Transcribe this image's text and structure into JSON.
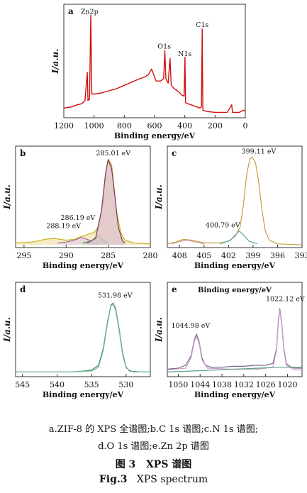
{
  "chart_data": [
    {
      "type": "line",
      "panel": "a",
      "xlabel": "Binding energy/eV",
      "ylabel": "I/a.u.",
      "x_reversed": true,
      "xlim": [
        1200,
        0
      ],
      "xticks": [
        1200,
        1000,
        800,
        600,
        400,
        200,
        0
      ],
      "series": [
        {
          "color": "#d01010",
          "points": [
            [
              1200,
              0.09
            ],
            [
              1150,
              0.1
            ],
            [
              1110,
              0.12
            ],
            [
              1080,
              0.13
            ],
            [
              1060,
              0.16
            ],
            [
              1045,
              0.42
            ],
            [
              1040,
              0.16
            ],
            [
              1030,
              0.17
            ],
            [
              1022,
              0.95
            ],
            [
              1015,
              0.22
            ],
            [
              1000,
              0.22
            ],
            [
              950,
              0.23
            ],
            [
              900,
              0.25
            ],
            [
              850,
              0.27
            ],
            [
              800,
              0.3
            ],
            [
              750,
              0.33
            ],
            [
              700,
              0.36
            ],
            [
              660,
              0.38
            ],
            [
              640,
              0.4
            ],
            [
              620,
              0.45
            ],
            [
              600,
              0.38
            ],
            [
              590,
              0.34
            ],
            [
              560,
              0.34
            ],
            [
              540,
              0.36
            ],
            [
              532,
              0.62
            ],
            [
              525,
              0.36
            ],
            [
              510,
              0.32
            ],
            [
              498,
              0.55
            ],
            [
              490,
              0.3
            ],
            [
              470,
              0.27
            ],
            [
              440,
              0.24
            ],
            [
              420,
              0.21
            ],
            [
              405,
              0.2
            ],
            [
              399,
              0.56
            ],
            [
              395,
              0.14
            ],
            [
              380,
              0.13
            ],
            [
              340,
              0.11
            ],
            [
              300,
              0.09
            ],
            [
              290,
              0.1
            ],
            [
              285,
              0.82
            ],
            [
              281,
              0.07
            ],
            [
              260,
              0.06
            ],
            [
              200,
              0.05
            ],
            [
              140,
              0.05
            ],
            [
              120,
              0.05
            ],
            [
              90,
              0.12
            ],
            [
              85,
              0.05
            ],
            [
              40,
              0.05
            ],
            [
              10,
              0.07
            ],
            [
              0,
              0.06
            ]
          ]
        }
      ],
      "annotations": [
        {
          "text": "Zn2p",
          "x": 1030,
          "y": 0.96
        },
        {
          "text": "O1s",
          "x": 536,
          "y": 0.64
        },
        {
          "text": "N1s",
          "x": 400,
          "y": 0.57
        },
        {
          "text": "C1s",
          "x": 285,
          "y": 0.84
        }
      ]
    },
    {
      "type": "line",
      "panel": "b",
      "xlabel": "Binding energy/eV",
      "ylabel": "I/a.u.",
      "x_reversed": true,
      "xlim": [
        296,
        280
      ],
      "xticks": [
        295,
        290,
        285,
        280
      ],
      "series": [
        {
          "color": "#c8b420",
          "fill": "#f1e5b0",
          "points": [
            [
              296,
              0.05
            ],
            [
              294,
              0.06
            ],
            [
              292.5,
              0.09
            ],
            [
              291.5,
              0.1
            ],
            [
              290,
              0.08
            ],
            [
              289,
              0.09
            ],
            [
              288.2,
              0.12
            ],
            [
              287.5,
              0.14
            ],
            [
              286.6,
              0.17
            ],
            [
              286,
              0.25
            ],
            [
              285.6,
              0.5
            ],
            [
              285.3,
              0.8
            ],
            [
              285.0,
              0.96
            ],
            [
              284.6,
              0.9
            ],
            [
              284.3,
              0.65
            ],
            [
              284.0,
              0.38
            ],
            [
              283.5,
              0.16
            ],
            [
              283,
              0.08
            ],
            [
              282,
              0.05
            ],
            [
              280,
              0.04
            ]
          ]
        },
        {
          "color": "#a06aa0",
          "fill": "#e7d0e2",
          "points": [
            [
              291,
              0.05
            ],
            [
              290,
              0.06
            ],
            [
              289,
              0.08
            ],
            [
              288.2,
              0.11
            ],
            [
              287.5,
              0.09
            ],
            [
              286.8,
              0.06
            ],
            [
              286,
              0.05
            ]
          ]
        },
        {
          "color": "#3a9a3a",
          "fill": "#bfe3bf",
          "points": [
            [
              288,
              0.05
            ],
            [
              287,
              0.07
            ],
            [
              286.2,
              0.13
            ],
            [
              285.5,
              0.07
            ],
            [
              285,
              0.05
            ]
          ]
        },
        {
          "color": "#7a3a5a",
          "fill": "#dcc0cf",
          "points": [
            [
              287.5,
              0.05
            ],
            [
              286.5,
              0.1
            ],
            [
              285.8,
              0.4
            ],
            [
              285.3,
              0.82
            ],
            [
              285.0,
              0.95
            ],
            [
              284.6,
              0.86
            ],
            [
              284.2,
              0.55
            ],
            [
              283.8,
              0.22
            ],
            [
              283.3,
              0.07
            ],
            [
              283,
              0.05
            ]
          ]
        }
      ],
      "annotations": [
        {
          "text": "285.01 eV",
          "x": 284.4,
          "y": 1.0
        },
        {
          "text": "286.19 eV",
          "x": 288.6,
          "y": 0.3
        },
        {
          "text": "288.19 eV",
          "x": 290.3,
          "y": 0.21
        }
      ]
    },
    {
      "type": "line",
      "panel": "c",
      "xlabel": "Binding energy/eV",
      "ylabel": "I/a.u.",
      "x_reversed": true,
      "xlim": [
        409.5,
        393
      ],
      "xticks": [
        408,
        405,
        402,
        399,
        396,
        393
      ],
      "series": [
        {
          "color": "#c8a040",
          "points": [
            [
              409.5,
              0.04
            ],
            [
              408.5,
              0.06
            ],
            [
              407.5,
              0.09
            ],
            [
              406.5,
              0.08
            ],
            [
              405,
              0.05
            ],
            [
              403,
              0.05
            ],
            [
              402,
              0.07
            ],
            [
              401.2,
              0.12
            ],
            [
              400.6,
              0.22
            ],
            [
              400.2,
              0.45
            ],
            [
              399.8,
              0.78
            ],
            [
              399.4,
              0.96
            ],
            [
              399.1,
              0.98
            ],
            [
              398.7,
              0.92
            ],
            [
              398.3,
              0.7
            ],
            [
              397.9,
              0.4
            ],
            [
              397.5,
              0.18
            ],
            [
              397,
              0.08
            ],
            [
              396,
              0.04
            ],
            [
              393,
              0.03
            ]
          ]
        },
        {
          "color": "#5aa0a0",
          "points": [
            [
              403,
              0.04
            ],
            [
              401.8,
              0.08
            ],
            [
              401,
              0.15
            ],
            [
              400.7,
              0.18
            ],
            [
              400.2,
              0.14
            ],
            [
              399.5,
              0.07
            ],
            [
              398.5,
              0.04
            ]
          ]
        },
        {
          "color": "#c89a9a",
          "points": [
            [
              409,
              0.04
            ],
            [
              407.8,
              0.07
            ],
            [
              407,
              0.08
            ],
            [
              406,
              0.06
            ],
            [
              405,
              0.04
            ]
          ]
        }
      ],
      "annotations": [
        {
          "text": "399.11 eV",
          "x": 398.3,
          "y": 1.02
        },
        {
          "text": "400.79 eV",
          "x": 402.7,
          "y": 0.22
        }
      ]
    },
    {
      "type": "line",
      "panel": "d",
      "xlabel": "Binding energy/eV",
      "ylabel": "I/a.u.",
      "x_reversed": true,
      "xlim": [
        546,
        526.5
      ],
      "xticks": [
        545,
        540,
        535,
        530
      ],
      "series": [
        {
          "color": "#3a8a5a",
          "points": [
            [
              546,
              0.05
            ],
            [
              542,
              0.05
            ],
            [
              538,
              0.05
            ],
            [
              536,
              0.06
            ],
            [
              535,
              0.07
            ],
            [
              534,
              0.12
            ],
            [
              533.3,
              0.3
            ],
            [
              532.7,
              0.58
            ],
            [
              532.2,
              0.76
            ],
            [
              531.9,
              0.78
            ],
            [
              531.5,
              0.72
            ],
            [
              531,
              0.5
            ],
            [
              530.5,
              0.25
            ],
            [
              530,
              0.1
            ],
            [
              529.5,
              0.06
            ],
            [
              528,
              0.05
            ],
            [
              526.5,
              0.05
            ]
          ]
        },
        {
          "color": "#7ab898",
          "points": [
            [
              546,
              0.05
            ],
            [
              538,
              0.05
            ],
            [
              535,
              0.06
            ],
            [
              534,
              0.1
            ],
            [
              533.3,
              0.28
            ],
            [
              532.7,
              0.56
            ],
            [
              532.2,
              0.75
            ],
            [
              531.9,
              0.77
            ],
            [
              531.5,
              0.7
            ],
            [
              531,
              0.48
            ],
            [
              530.5,
              0.23
            ],
            [
              530,
              0.09
            ],
            [
              529,
              0.05
            ],
            [
              526.5,
              0.05
            ]
          ]
        }
      ],
      "annotations": [
        {
          "text": "531.98 eV",
          "x": 531.6,
          "y": 0.84
        }
      ]
    },
    {
      "type": "line",
      "panel": "e",
      "title": "Binding energy/eV",
      "xlabel": "Binding energy/eV",
      "ylabel": "I/a.u.",
      "x_reversed": true,
      "xlim": [
        1053,
        1016
      ],
      "xticks": [
        1050,
        1044,
        1038,
        1032,
        1026,
        1020
      ],
      "series": [
        {
          "color": "#7a6a8a",
          "points": [
            [
              1053,
              0.08
            ],
            [
              1050,
              0.09
            ],
            [
              1048,
              0.12
            ],
            [
              1046.5,
              0.22
            ],
            [
              1045.5,
              0.4
            ],
            [
              1045,
              0.45
            ],
            [
              1044.3,
              0.38
            ],
            [
              1043.5,
              0.2
            ],
            [
              1042.5,
              0.12
            ],
            [
              1041,
              0.1
            ],
            [
              1038,
              0.1
            ],
            [
              1035,
              0.11
            ],
            [
              1032,
              0.11
            ],
            [
              1029,
              0.12
            ],
            [
              1026,
              0.12
            ],
            [
              1024,
              0.14
            ],
            [
              1023,
              0.3
            ],
            [
              1022.5,
              0.6
            ],
            [
              1022.1,
              0.72
            ],
            [
              1021.6,
              0.58
            ],
            [
              1021,
              0.3
            ],
            [
              1020.3,
              0.14
            ],
            [
              1019,
              0.1
            ],
            [
              1018,
              0.09
            ],
            [
              1016,
              0.09
            ]
          ]
        },
        {
          "color": "#c8a0c8",
          "points": [
            [
              1053,
              0.07
            ],
            [
              1048,
              0.09
            ],
            [
              1046.5,
              0.2
            ],
            [
              1045.5,
              0.38
            ],
            [
              1045,
              0.43
            ],
            [
              1044.3,
              0.36
            ],
            [
              1043.5,
              0.18
            ],
            [
              1042,
              0.09
            ],
            [
              1036,
              0.08
            ],
            [
              1028,
              0.08
            ],
            [
              1024,
              0.1
            ],
            [
              1023,
              0.28
            ],
            [
              1022.5,
              0.58
            ],
            [
              1022.1,
              0.7
            ],
            [
              1021.6,
              0.56
            ],
            [
              1021,
              0.28
            ],
            [
              1020.3,
              0.12
            ],
            [
              1018,
              0.07
            ],
            [
              1016,
              0.07
            ]
          ]
        },
        {
          "color": "#5aa08a",
          "points": [
            [
              1053,
              0.05
            ],
            [
              1046,
              0.06
            ],
            [
              1040,
              0.07
            ],
            [
              1034,
              0.08
            ],
            [
              1028,
              0.09
            ],
            [
              1022,
              0.1
            ],
            [
              1016,
              0.1
            ]
          ]
        }
      ],
      "annotations": [
        {
          "text": "1044.98 eV",
          "x": 1046.6,
          "y": 0.52
        },
        {
          "text": "1022.12 eV",
          "x": 1020.6,
          "y": 0.8
        }
      ]
    }
  ],
  "caption": {
    "sub_line1": "a.ZIF-8 的 XPS 全谱图;b.C 1s 谱图;c.N 1s 谱图;",
    "sub_line2": "d.O 1s 谱图;e.Zn 2p 谱图",
    "cn_num": "图 3",
    "cn_title": "XPS 谱图",
    "en_num": "Fig.3",
    "en_title": "XPS spectrum"
  }
}
